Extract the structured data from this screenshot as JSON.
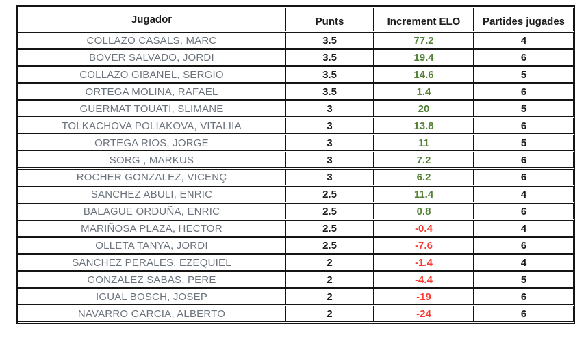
{
  "table": {
    "columns": [
      {
        "key": "jugador",
        "label": "Jugador"
      },
      {
        "key": "punts",
        "label": "Punts"
      },
      {
        "key": "increment_elo",
        "label": "Increment ELO"
      },
      {
        "key": "partides",
        "label": "Partides jugades"
      }
    ],
    "rows": [
      {
        "jugador": "COLLAZO CASALS, MARC",
        "punts": "3.5",
        "increment_elo": "77.2",
        "partides": "4"
      },
      {
        "jugador": "BOVER SALVADO, JORDI",
        "punts": "3.5",
        "increment_elo": "19.4",
        "partides": "6"
      },
      {
        "jugador": "COLLAZO GIBANEL, SERGIO",
        "punts": "3.5",
        "increment_elo": "14.6",
        "partides": "5"
      },
      {
        "jugador": "ORTEGA MOLINA, RAFAEL",
        "punts": "3.5",
        "increment_elo": "1.4",
        "partides": "6"
      },
      {
        "jugador": "GUERMAT TOUATI, SLIMANE",
        "punts": "3",
        "increment_elo": "20",
        "partides": "5"
      },
      {
        "jugador": "TOLKACHOVA POLIAKOVA, VITALIIA",
        "punts": "3",
        "increment_elo": "13.8",
        "partides": "6"
      },
      {
        "jugador": "ORTEGA RIOS, JORGE",
        "punts": "3",
        "increment_elo": "11",
        "partides": "5"
      },
      {
        "jugador": "SORG , MARKUS",
        "punts": "3",
        "increment_elo": "7.2",
        "partides": "6"
      },
      {
        "jugador": "ROCHER GONZALEZ, VICENÇ",
        "punts": "3",
        "increment_elo": "6.2",
        "partides": "6"
      },
      {
        "jugador": "SANCHEZ ABULI, ENRIC",
        "punts": "2.5",
        "increment_elo": "11.4",
        "partides": "4"
      },
      {
        "jugador": "BALAGUE ORDUÑA, ENRIC",
        "punts": "2.5",
        "increment_elo": "0.8",
        "partides": "6"
      },
      {
        "jugador": "MARIÑOSA PLAZA, HECTOR",
        "punts": "2.5",
        "increment_elo": "-0.4",
        "partides": "4"
      },
      {
        "jugador": "OLLETA TANYA, JORDI",
        "punts": "2.5",
        "increment_elo": "-7.6",
        "partides": "6"
      },
      {
        "jugador": "SANCHEZ PERALES, EZEQUIEL",
        "punts": "2",
        "increment_elo": "-1.4",
        "partides": "4"
      },
      {
        "jugador": "GONZALEZ SABAS, PERE",
        "punts": "2",
        "increment_elo": "-4.4",
        "partides": "5"
      },
      {
        "jugador": "IGUAL BOSCH, JOSEP",
        "punts": "2",
        "increment_elo": "-19",
        "partides": "6"
      },
      {
        "jugador": "NAVARRO GARCIA, ALBERTO",
        "punts": "2",
        "increment_elo": "-24",
        "partides": "6"
      }
    ]
  },
  "colors": {
    "positive_elo": "#538135",
    "negative_elo": "#fa3a30",
    "player_name": "#6b737c",
    "border": "#141414"
  }
}
